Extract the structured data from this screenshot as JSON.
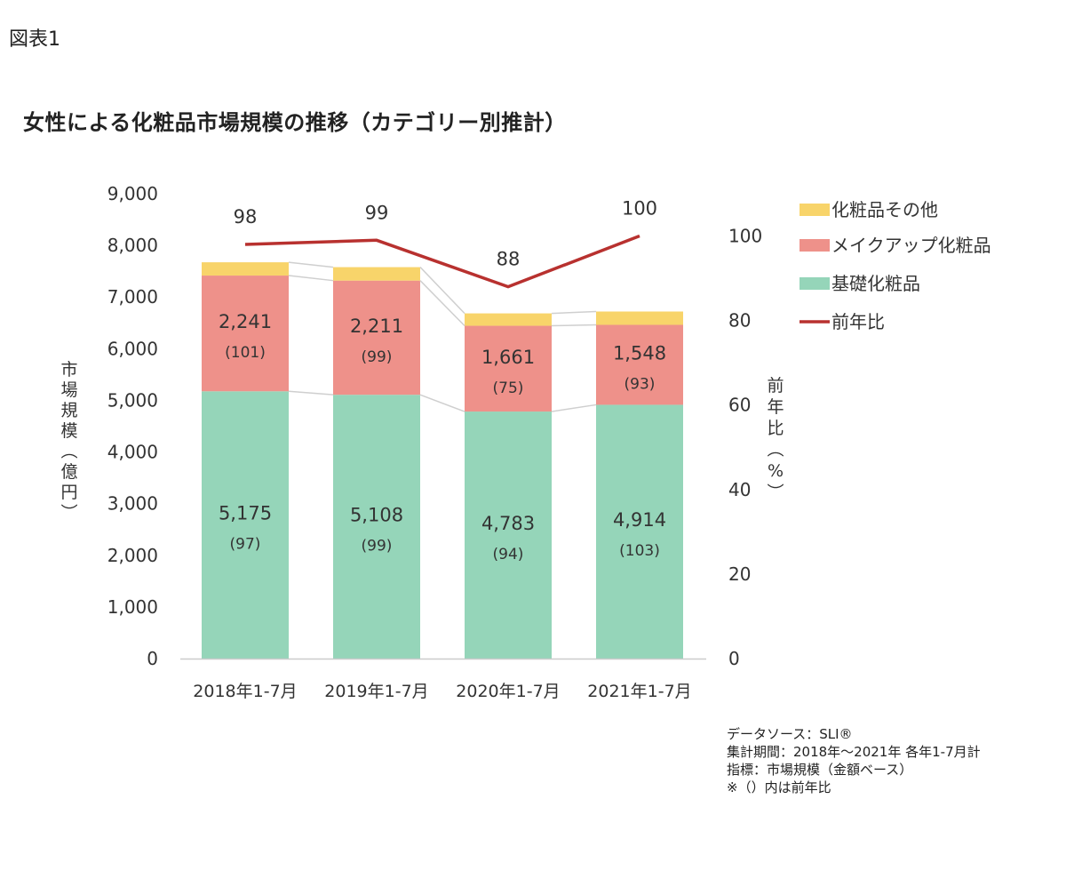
{
  "figure_label": "図表1",
  "chart_data": {
    "type": "bar",
    "title": "女性による化粧品市場規模の推移（カテゴリー別推計）",
    "categories": [
      "2018年1-7月",
      "2019年1-7月",
      "2020年1-7月",
      "2021年1-7月"
    ],
    "ylabel": "市場規模（億円）",
    "y2label": "前年比（%）",
    "ylim": [
      0,
      9000
    ],
    "y2lim": [
      0,
      110
    ],
    "yticks": [
      "0",
      "1,000",
      "2,000",
      "3,000",
      "4,000",
      "5,000",
      "6,000",
      "7,000",
      "8,000",
      "9,000"
    ],
    "y2ticks": [
      "0",
      "20",
      "40",
      "60",
      "80",
      "100"
    ],
    "series": [
      {
        "name": "基礎化粧品",
        "color": "#95d5b9",
        "values": [
          5175,
          5108,
          4783,
          4914
        ],
        "labels": [
          "5,175",
          "5,108",
          "4,783",
          "4,914"
        ],
        "yoy_labels": [
          "(97)",
          "(99)",
          "(94)",
          "(103)"
        ]
      },
      {
        "name": "メイクアップ化粧品",
        "color": "#ee918a",
        "values": [
          2241,
          2211,
          1661,
          1548
        ],
        "labels": [
          "2,241",
          "2,211",
          "1,661",
          "1,548"
        ],
        "yoy_labels": [
          "(101)",
          "(99)",
          "(75)",
          "(93)"
        ]
      },
      {
        "name": "化粧品その他",
        "color": "#f8d46a",
        "values": [
          257,
          260,
          240,
          258
        ]
      }
    ],
    "line": {
      "name": "前年比",
      "color": "#b8312f",
      "values": [
        98,
        99,
        88,
        100
      ],
      "labels": [
        "98",
        "99",
        "88",
        "100"
      ]
    },
    "legend_position": "top-right",
    "grid": false
  },
  "notes": [
    "データソース：SLI®",
    "集計期間：2018年～2021年 各年1-7月計",
    "指標：市場規模（金額ベース）",
    "※（）内は前年比"
  ]
}
